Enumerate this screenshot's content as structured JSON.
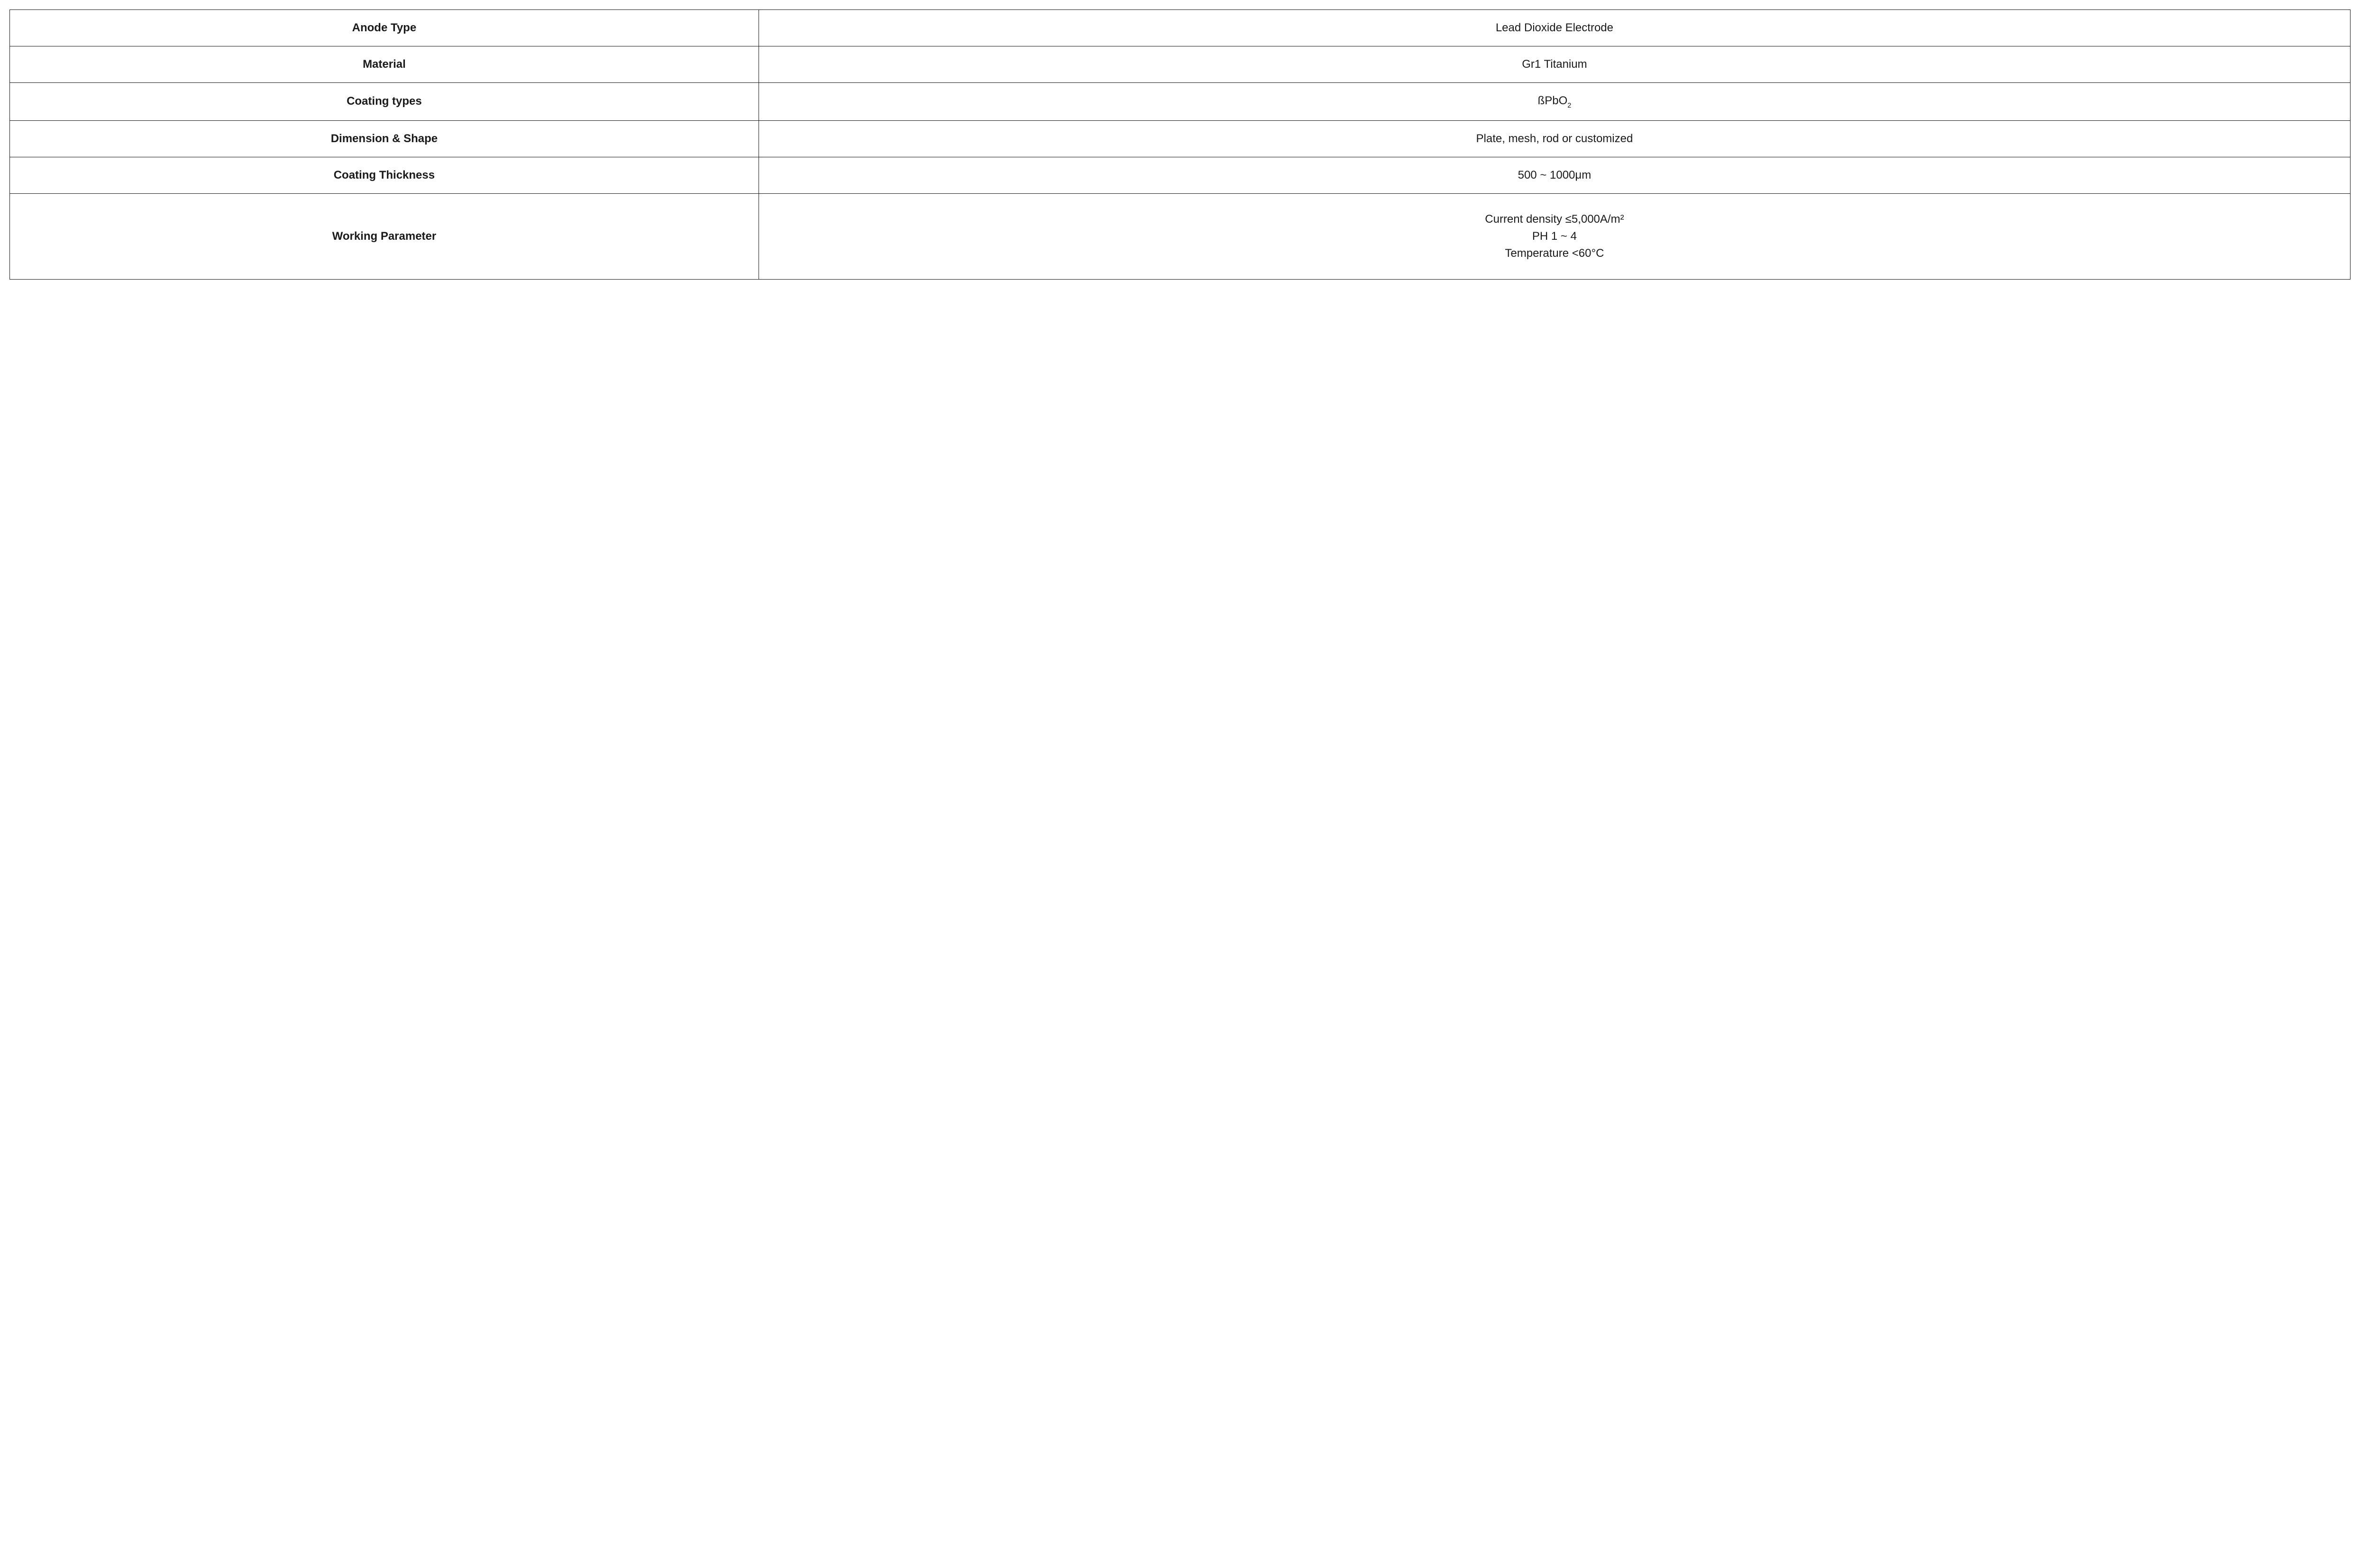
{
  "table": {
    "border_color": "#1a1a1a",
    "background_color": "#ffffff",
    "text_color": "#1a1a1a",
    "label_fontsize": 24,
    "value_fontsize": 24,
    "label_fontweight": 700,
    "value_fontweight": 400,
    "label_column_width_pct": 32,
    "value_column_width_pct": 68,
    "rows": [
      {
        "label": "Anode Type",
        "value": "Lead Dioxide Electrode"
      },
      {
        "label": "Material",
        "value": "Gr1 Titanium"
      },
      {
        "label": "Coating types",
        "value_html": "ßPbO₂",
        "value_base": "ßPbO",
        "value_sub": "2"
      },
      {
        "label": "Dimension & Shape",
        "value": "Plate, mesh, rod or customized"
      },
      {
        "label": "Coating Thickness",
        "value": "500 ~ 1000μm"
      },
      {
        "label": "Working Parameter",
        "value_lines": [
          "Current density ≤5,000A/m²",
          "PH 1 ~ 4",
          "Temperature <60°C"
        ]
      }
    ]
  }
}
